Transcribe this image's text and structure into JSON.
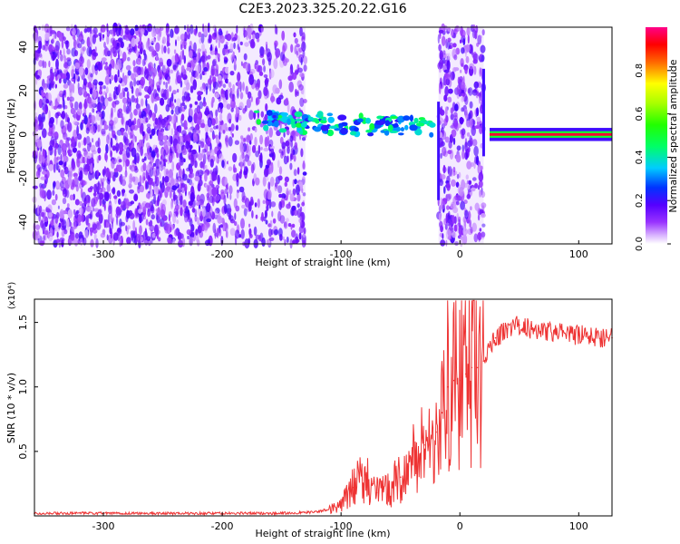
{
  "title": "C2E3.2023.325.20.22.G16",
  "chart_data": [
    {
      "type": "heatmap",
      "xlabel": "Height of straight line (km)",
      "ylabel": "Frequency (Hz)",
      "xlim": [
        -358,
        128
      ],
      "ylim": [
        -50,
        49
      ],
      "xticks": [
        -300,
        -200,
        -100,
        0,
        100
      ],
      "yticks": [
        -40,
        -20,
        0,
        20,
        40
      ],
      "colorbar": {
        "label": "Normalized spectral amplitude",
        "ticks": [
          "0.0",
          "0.2",
          "0.4",
          "0.6",
          "0.8"
        ],
        "range": [
          0,
          1
        ],
        "colormap": "rainbow white-purple-blue-cyan-green-yellow-red-magenta"
      },
      "regions": [
        {
          "name": "noise",
          "x": [
            -358,
            -195
          ],
          "freq": [
            -50,
            49
          ],
          "amplitude": 0.05
        },
        {
          "name": "noise sparse",
          "x": [
            -195,
            -130
          ],
          "freq": [
            -50,
            49
          ],
          "amplitude": 0.03
        },
        {
          "name": "noise band",
          "x": [
            -18,
            20
          ],
          "freq": [
            -50,
            49
          ],
          "amplitude": 0.04
        },
        {
          "name": "signal track",
          "x": [
            -175,
            -20
          ],
          "freq_start": 6,
          "freq_end": 3,
          "amplitude": 0.35
        },
        {
          "name": "carrier",
          "x": [
            25,
            128
          ],
          "freq": 0,
          "amplitude": 0.95
        }
      ]
    },
    {
      "type": "line",
      "xlabel": "Height of straight line (km)",
      "ylabel": "SNR (10 * v/v)",
      "multiplier": "(x10⁴)",
      "xlim": [
        -358,
        128
      ],
      "ylim": [
        0,
        1.68
      ],
      "xticks": [
        -300,
        -200,
        -100,
        0,
        100
      ],
      "yticks": [
        "0.5",
        "1.0",
        "1.5"
      ],
      "color": "#ee3333",
      "x": [
        -358,
        -300,
        -250,
        -200,
        -150,
        -120,
        -100,
        -90,
        -80,
        -70,
        -60,
        -50,
        -40,
        -30,
        -20,
        -15,
        -10,
        -5,
        0,
        5,
        10,
        15,
        20,
        25,
        30,
        40,
        50,
        60,
        80,
        100,
        128
      ],
      "values": [
        0.02,
        0.02,
        0.02,
        0.02,
        0.02,
        0.03,
        0.08,
        0.22,
        0.32,
        0.18,
        0.2,
        0.3,
        0.42,
        0.55,
        0.65,
        0.8,
        1.0,
        1.05,
        1.05,
        1.1,
        1.15,
        1.15,
        1.2,
        1.32,
        1.38,
        1.45,
        1.48,
        1.45,
        1.42,
        1.4,
        1.38
      ]
    }
  ]
}
